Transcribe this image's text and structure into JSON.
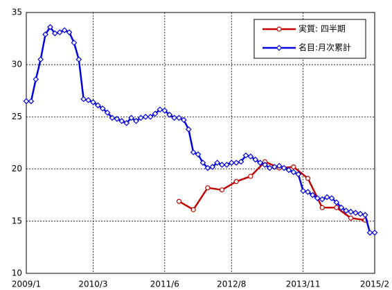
{
  "chart_data": {
    "type": "line",
    "x": [
      "2009/1",
      "2009/2",
      "2009/3",
      "2009/4",
      "2009/5",
      "2009/6",
      "2009/7",
      "2009/8",
      "2009/9",
      "2009/10",
      "2009/11",
      "2009/12",
      "2010/1",
      "2010/2",
      "2010/3",
      "2010/4",
      "2010/5",
      "2010/6",
      "2010/7",
      "2010/8",
      "2010/9",
      "2010/10",
      "2010/11",
      "2010/12",
      "2011/1",
      "2011/2",
      "2011/3",
      "2011/4",
      "2011/5",
      "2011/6",
      "2011/7",
      "2011/8",
      "2011/9",
      "2011/10",
      "2011/11",
      "2011/12",
      "2012/1",
      "2012/2",
      "2012/3",
      "2012/4",
      "2012/5",
      "2012/6",
      "2012/7",
      "2012/8",
      "2012/9",
      "2012/10",
      "2012/11",
      "2012/12",
      "2013/1",
      "2013/2",
      "2013/3",
      "2013/4",
      "2013/5",
      "2013/6",
      "2013/7",
      "2013/8",
      "2013/9",
      "2013/10",
      "2013/11",
      "2013/12",
      "2014/1",
      "2014/2",
      "2014/3",
      "2014/4",
      "2014/5",
      "2014/6",
      "2014/7",
      "2014/8",
      "2014/9",
      "2014/10",
      "2014/11",
      "2014/12",
      "2015/1",
      "2015/2"
    ],
    "xticks": [
      "2009/1",
      "2010/3",
      "2011/6",
      "2012/8",
      "2013/11",
      "2015/2"
    ],
    "series": [
      {
        "name": "実質: 四半期",
        "color": "#c00000",
        "marker": "circle",
        "x": [
          "2011/9",
          "2011/12",
          "2012/3",
          "2012/6",
          "2012/9",
          "2012/12",
          "2013/3",
          "2013/6",
          "2013/9",
          "2013/12",
          "2014/3",
          "2014/6",
          "2014/9",
          "2014/12"
        ],
        "values": [
          16.9,
          16.1,
          18.2,
          18.0,
          18.8,
          19.3,
          20.7,
          20.1,
          20.2,
          19.1,
          16.3,
          16.3,
          15.3,
          15.1
        ]
      },
      {
        "name": "名目:月次累計",
        "color": "#0000e0",
        "marker": "diamond",
        "values": [
          26.5,
          26.5,
          28.6,
          30.5,
          32.9,
          33.6,
          33.0,
          33.1,
          33.3,
          33.1,
          32.1,
          30.5,
          26.7,
          26.6,
          26.4,
          26.1,
          25.8,
          25.4,
          24.9,
          24.8,
          24.6,
          24.4,
          24.9,
          24.6,
          24.9,
          25.0,
          25.0,
          25.3,
          25.7,
          25.6,
          25.2,
          24.9,
          24.9,
          24.7,
          23.8,
          21.6,
          21.4,
          20.6,
          20.1,
          20.2,
          20.6,
          20.4,
          20.4,
          20.6,
          20.6,
          20.7,
          21.3,
          21.2,
          20.9,
          20.6,
          20.4,
          20.1,
          20.2,
          20.3,
          20.1,
          19.9,
          19.7,
          19.5,
          17.9,
          17.8,
          17.5,
          17.2,
          17.1,
          17.3,
          17.2,
          16.8,
          16.3,
          16.0,
          15.9,
          15.8,
          15.7,
          15.6,
          13.9,
          13.9
        ]
      }
    ],
    "ylim": [
      10,
      35
    ],
    "yticks": [
      10,
      15,
      20,
      25,
      30,
      35
    ],
    "grid": true,
    "legend": "upper right"
  }
}
